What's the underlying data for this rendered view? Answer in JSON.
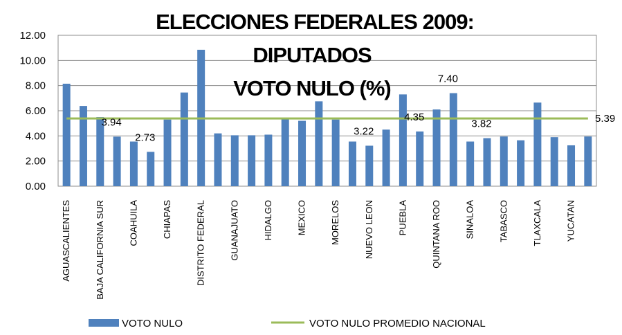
{
  "chart_data": {
    "type": "bar",
    "title": [
      "ELECCIONES FEDERALES 2009:",
      "DIPUTADOS",
      "VOTO NULO (%)"
    ],
    "categories": [
      "AGUASCALIENTES",
      null,
      "BAJA CALIFORNIA SUR",
      null,
      "COAHUILA",
      null,
      "CHIAPAS",
      null,
      "DISTRITO FEDERAL",
      null,
      "GUANAJUATO",
      null,
      "HIDALGO",
      null,
      "MEXICO",
      null,
      "MORELOS",
      null,
      "NUEVO LEON",
      null,
      "PUEBLA",
      null,
      "QUINTANA ROO",
      null,
      "SINALOA",
      null,
      "TABASCO",
      null,
      "TLAXCALA",
      null,
      "YUCATAN",
      null
    ],
    "series": [
      {
        "name": "VOTO NULO",
        "color": "#4f81bd",
        "values": [
          8.15,
          6.38,
          5.5,
          3.94,
          3.55,
          2.73,
          5.3,
          7.45,
          10.85,
          4.2,
          4.05,
          4.05,
          4.1,
          5.35,
          5.2,
          6.75,
          5.3,
          3.55,
          3.22,
          4.5,
          7.3,
          4.35,
          6.1,
          7.4,
          3.55,
          3.82,
          3.95,
          3.65,
          6.65,
          3.9,
          3.25,
          3.95
        ],
        "value_labels": [
          null,
          null,
          null,
          "3.94",
          null,
          "2.73",
          null,
          null,
          null,
          null,
          null,
          null,
          null,
          null,
          null,
          null,
          null,
          null,
          "3.22",
          null,
          null,
          "4.35",
          null,
          "7.40",
          null,
          "3.82",
          null,
          null,
          null,
          null,
          null,
          null
        ]
      }
    ],
    "reference_line": {
      "name": "VOTO NULO PROMEDIO NACIONAL",
      "color": "#9bbb59",
      "value": 5.39,
      "label": "5.39"
    },
    "ylim": [
      0,
      12
    ],
    "yticks": [
      {
        "value": 0,
        "label": "0.00"
      },
      {
        "value": 2,
        "label": "2.00"
      },
      {
        "value": 4,
        "label": "4.00"
      },
      {
        "value": 6,
        "label": "6.00"
      },
      {
        "value": 8,
        "label": "8.00"
      },
      {
        "value": 10,
        "label": "10.00"
      },
      {
        "value": 12,
        "label": "12.00"
      }
    ],
    "grid": true
  }
}
